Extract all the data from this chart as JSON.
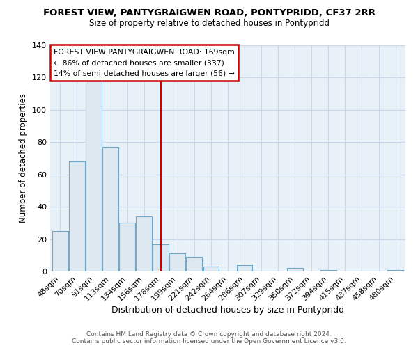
{
  "title": "FOREST VIEW, PANTYGRAIGWEN ROAD, PONTYPRIDD, CF37 2RR",
  "subtitle": "Size of property relative to detached houses in Pontypridd",
  "xlabel": "Distribution of detached houses by size in Pontypridd",
  "ylabel": "Number of detached properties",
  "bar_labels": [
    "48sqm",
    "70sqm",
    "91sqm",
    "113sqm",
    "134sqm",
    "156sqm",
    "178sqm",
    "199sqm",
    "221sqm",
    "242sqm",
    "264sqm",
    "286sqm",
    "307sqm",
    "329sqm",
    "350sqm",
    "372sqm",
    "394sqm",
    "415sqm",
    "437sqm",
    "458sqm",
    "480sqm"
  ],
  "bar_values": [
    25,
    68,
    118,
    77,
    30,
    34,
    17,
    11,
    9,
    3,
    0,
    4,
    0,
    0,
    2,
    0,
    1,
    0,
    0,
    0,
    1
  ],
  "bar_color": "#dde8f0",
  "bar_edge_color": "#6fa8c8",
  "vline_x": 6.0,
  "vline_color": "#cc0000",
  "ylim": [
    0,
    140
  ],
  "yticks": [
    0,
    20,
    40,
    60,
    80,
    100,
    120,
    140
  ],
  "annotation_line1": "FOREST VIEW PANTYGRAIGWEN ROAD: 169sqm",
  "annotation_line2": "← 86% of detached houses are smaller (337)",
  "annotation_line3": "14% of semi-detached houses are larger (56) →",
  "annotation_box_color": "#ffffff",
  "annotation_box_edge": "#cc0000",
  "footer_line1": "Contains HM Land Registry data © Crown copyright and database right 2024.",
  "footer_line2": "Contains public sector information licensed under the Open Government Licence v3.0.",
  "plot_bg_color": "#e8f0f8",
  "background_color": "#ffffff",
  "grid_color": "#c8d8e8"
}
